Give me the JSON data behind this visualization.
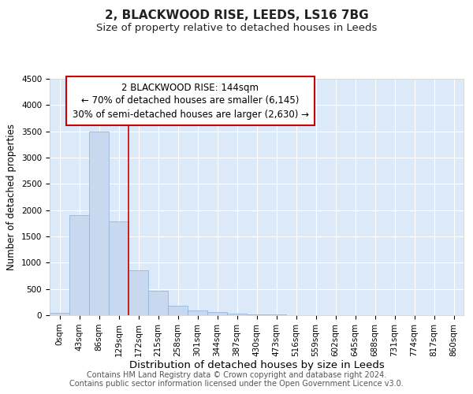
{
  "title1": "2, BLACKWOOD RISE, LEEDS, LS16 7BG",
  "title2": "Size of property relative to detached houses in Leeds",
  "xlabel": "Distribution of detached houses by size in Leeds",
  "ylabel": "Number of detached properties",
  "categories": [
    "0sqm",
    "43sqm",
    "86sqm",
    "129sqm",
    "172sqm",
    "215sqm",
    "258sqm",
    "301sqm",
    "344sqm",
    "387sqm",
    "430sqm",
    "473sqm",
    "516sqm",
    "559sqm",
    "602sqm",
    "645sqm",
    "688sqm",
    "731sqm",
    "774sqm",
    "817sqm",
    "860sqm"
  ],
  "values": [
    40,
    1900,
    3500,
    1780,
    860,
    460,
    185,
    95,
    55,
    30,
    20,
    10,
    5,
    3,
    2,
    1,
    1,
    1,
    0,
    0,
    0
  ],
  "bar_color": "#c8d8ee",
  "bar_edge_color": "#8ab0d8",
  "ylim": [
    0,
    4500
  ],
  "yticks": [
    0,
    500,
    1000,
    1500,
    2000,
    2500,
    3000,
    3500,
    4000,
    4500
  ],
  "property_bin_index": 3,
  "vline_color": "#cc0000",
  "annotation_text_line1": "2 BLACKWOOD RISE: 144sqm",
  "annotation_text_line2": "← 70% of detached houses are smaller (6,145)",
  "annotation_text_line3": "30% of semi-detached houses are larger (2,630) →",
  "annotation_box_color": "#ffffff",
  "annotation_box_edge_color": "#cc0000",
  "footer_text": "Contains HM Land Registry data © Crown copyright and database right 2024.\nContains public sector information licensed under the Open Government Licence v3.0.",
  "bg_color": "#dce9f8",
  "grid_color": "#ffffff",
  "title1_fontsize": 11,
  "title2_fontsize": 9.5,
  "xlabel_fontsize": 9.5,
  "ylabel_fontsize": 8.5,
  "tick_fontsize": 7.5,
  "annotation_fontsize": 8.5,
  "footer_fontsize": 7
}
